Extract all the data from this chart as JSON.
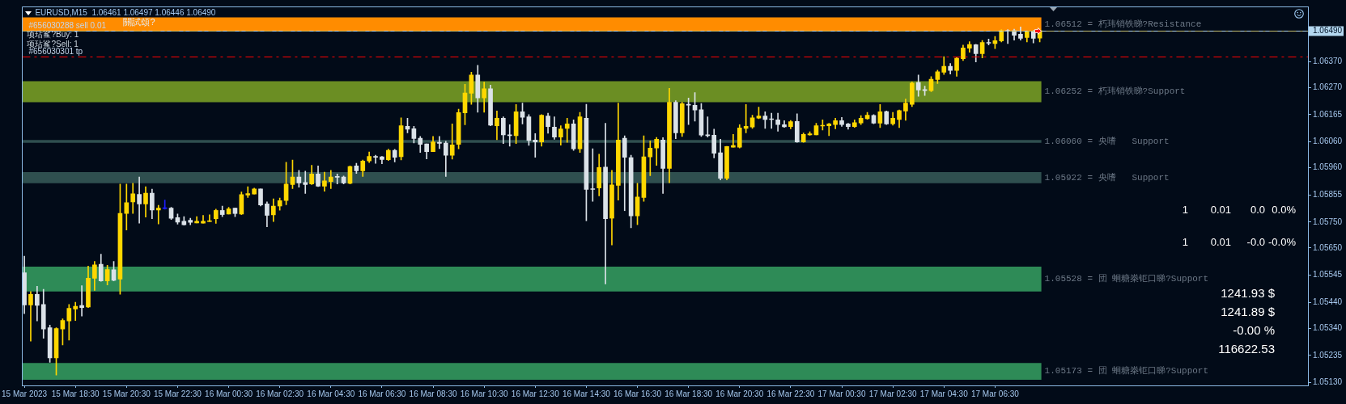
{
  "chart_data": {
    "type": "candlestick",
    "title": "EURUSD,M15  1.06461 1.06497 1.06446 1.06490",
    "x": [
      "2023-03-15T16:30",
      "2023-03-15T16:45",
      "2023-03-15T17:00",
      "2023-03-15T17:15",
      "2023-03-15T17:30",
      "2023-03-15T17:45",
      "2023-03-15T18:00",
      "2023-03-15T18:15",
      "2023-03-15T18:30",
      "2023-03-15T18:45",
      "2023-03-15T19:00",
      "2023-03-15T19:15",
      "2023-03-15T19:30",
      "2023-03-15T19:45",
      "2023-03-15T20:00",
      "2023-03-15T20:15",
      "2023-03-15T20:30",
      "2023-03-15T20:45",
      "2023-03-15T21:00",
      "2023-03-15T21:15",
      "2023-03-15T21:30",
      "2023-03-15T21:45",
      "2023-03-15T22:00",
      "2023-03-15T22:15",
      "2023-03-15T22:30",
      "2023-03-15T22:45",
      "2023-03-15T23:00",
      "2023-03-15T23:15",
      "2023-03-15T23:30",
      "2023-03-15T23:45",
      "2023-03-16T00:00",
      "2023-03-16T00:15",
      "2023-03-16T00:30",
      "2023-03-16T00:45",
      "2023-03-16T01:00",
      "2023-03-16T01:15",
      "2023-03-16T01:30",
      "2023-03-16T01:45",
      "2023-03-16T02:00",
      "2023-03-16T02:15",
      "2023-03-16T02:30",
      "2023-03-16T02:45",
      "2023-03-16T03:00",
      "2023-03-16T03:15",
      "2023-03-16T03:30",
      "2023-03-16T03:45",
      "2023-03-16T04:00",
      "2023-03-16T04:15",
      "2023-03-16T04:30",
      "2023-03-16T04:45",
      "2023-03-16T05:00",
      "2023-03-16T05:15",
      "2023-03-16T05:30",
      "2023-03-16T05:45",
      "2023-03-16T06:00",
      "2023-03-16T06:15",
      "2023-03-16T06:30",
      "2023-03-16T06:45",
      "2023-03-16T07:00",
      "2023-03-16T07:15",
      "2023-03-16T07:30",
      "2023-03-16T07:45",
      "2023-03-16T08:00",
      "2023-03-16T08:15",
      "2023-03-16T08:30",
      "2023-03-16T08:45",
      "2023-03-16T09:00",
      "2023-03-16T09:15",
      "2023-03-16T09:30",
      "2023-03-16T09:45",
      "2023-03-16T10:00",
      "2023-03-16T10:15",
      "2023-03-16T10:30",
      "2023-03-16T10:45",
      "2023-03-16T11:00",
      "2023-03-16T11:15",
      "2023-03-16T11:30",
      "2023-03-16T11:45",
      "2023-03-16T12:00",
      "2023-03-16T12:15",
      "2023-03-16T12:30",
      "2023-03-16T12:45",
      "2023-03-16T13:00",
      "2023-03-16T13:15",
      "2023-03-16T13:30",
      "2023-03-16T13:45",
      "2023-03-16T14:00",
      "2023-03-16T14:15",
      "2023-03-16T14:30",
      "2023-03-16T14:45",
      "2023-03-16T15:00",
      "2023-03-16T15:15",
      "2023-03-16T15:30",
      "2023-03-16T15:45",
      "2023-03-16T16:00",
      "2023-03-16T16:15",
      "2023-03-16T16:30",
      "2023-03-16T16:45",
      "2023-03-16T17:00",
      "2023-03-16T17:15",
      "2023-03-16T17:30",
      "2023-03-16T17:45",
      "2023-03-16T18:00",
      "2023-03-16T18:15",
      "2023-03-16T18:30",
      "2023-03-16T18:45",
      "2023-03-16T19:00",
      "2023-03-16T19:15",
      "2023-03-16T19:30",
      "2023-03-16T19:45",
      "2023-03-16T20:00",
      "2023-03-16T20:15",
      "2023-03-16T20:30",
      "2023-03-16T20:45",
      "2023-03-16T21:00",
      "2023-03-16T21:15",
      "2023-03-16T21:30",
      "2023-03-16T21:45",
      "2023-03-16T22:00",
      "2023-03-16T22:15",
      "2023-03-16T22:30",
      "2023-03-16T22:45",
      "2023-03-16T23:00",
      "2023-03-16T23:15",
      "2023-03-16T23:30",
      "2023-03-16T23:45",
      "2023-03-17T00:00",
      "2023-03-17T00:15",
      "2023-03-17T00:30",
      "2023-03-17T00:45",
      "2023-03-17T01:00",
      "2023-03-17T01:15",
      "2023-03-17T01:30",
      "2023-03-17T01:45",
      "2023-03-17T02:00",
      "2023-03-17T02:15",
      "2023-03-17T02:30",
      "2023-03-17T02:45",
      "2023-03-17T03:00",
      "2023-03-17T03:15",
      "2023-03-17T03:30",
      "2023-03-17T03:45",
      "2023-03-17T04:00",
      "2023-03-17T04:15",
      "2023-03-17T04:30",
      "2023-03-17T04:45",
      "2023-03-17T05:00",
      "2023-03-17T05:15",
      "2023-03-17T05:30",
      "2023-03-17T05:45",
      "2023-03-17T06:00",
      "2023-03-17T06:15",
      "2023-03-17T06:30",
      "2023-03-17T06:45",
      "2023-03-17T07:00",
      "2023-03-17T07:15",
      "2023-03-17T07:30",
      "2023-03-17T07:45",
      "2023-03-17T08:00",
      "2023-03-17T08:15"
    ],
    "ohlc": [
      [
        1.05554,
        1.05618,
        1.05396,
        1.0543
      ],
      [
        1.0543,
        1.05482,
        1.0529,
        1.05471
      ],
      [
        1.05471,
        1.05502,
        1.05368,
        1.05428
      ],
      [
        1.05432,
        1.0549,
        1.05301,
        1.05337
      ],
      [
        1.05342,
        1.05352,
        1.05208,
        1.05225
      ],
      [
        1.05225,
        1.05342,
        1.05159,
        1.05339
      ],
      [
        1.05337,
        1.05376,
        1.05275,
        1.0537
      ],
      [
        1.05368,
        1.05432,
        1.05294,
        1.05417
      ],
      [
        1.05414,
        1.0544,
        1.0537,
        1.05425
      ],
      [
        1.05428,
        1.05504,
        1.05387,
        1.0542
      ],
      [
        1.05422,
        1.0558,
        1.0542,
        1.05533
      ],
      [
        1.05533,
        1.05598,
        1.05486,
        1.05585
      ],
      [
        1.05587,
        1.05626,
        1.05521,
        1.05523
      ],
      [
        1.05523,
        1.05583,
        1.05507,
        1.05567
      ],
      [
        1.05566,
        1.05598,
        1.05523,
        1.05525
      ],
      [
        1.0553,
        1.05897,
        1.05471,
        1.05784
      ],
      [
        1.05783,
        1.05897,
        1.05719,
        1.05825
      ],
      [
        1.05828,
        1.059,
        1.05783,
        1.05859
      ],
      [
        1.05857,
        1.05924,
        1.05746,
        1.0582
      ],
      [
        1.0582,
        1.05887,
        1.05769,
        1.05862
      ],
      [
        1.05862,
        1.05877,
        1.05763,
        1.05797
      ],
      [
        1.05797,
        1.05815,
        1.05743,
        1.05804
      ],
      [
        1.05802,
        1.05835,
        1.058,
        1.05802
      ],
      [
        1.05804,
        1.05807,
        1.0576,
        1.05765
      ],
      [
        1.05767,
        1.05781,
        1.05742,
        1.0575
      ],
      [
        1.05753,
        1.05771,
        1.05738,
        1.0574
      ],
      [
        1.05757,
        1.05765,
        1.0574,
        1.05749
      ],
      [
        1.05747,
        1.05771,
        1.05747,
        1.05753
      ],
      [
        1.05746,
        1.05776,
        1.05746,
        1.05753
      ],
      [
        1.05752,
        1.05778,
        1.05752,
        1.05755
      ],
      [
        1.05763,
        1.058,
        1.05745,
        1.05795
      ],
      [
        1.05795,
        1.05812,
        1.05771,
        1.05779
      ],
      [
        1.05781,
        1.05807,
        1.05781,
        1.05801
      ],
      [
        1.05804,
        1.05804,
        1.05771,
        1.05783
      ],
      [
        1.05781,
        1.05866,
        1.05779,
        1.05856
      ],
      [
        1.05854,
        1.05887,
        1.05845,
        1.0586
      ],
      [
        1.05858,
        1.05881,
        1.05858,
        1.05878
      ],
      [
        1.05878,
        1.05878,
        1.05812,
        1.05816
      ],
      [
        1.0582,
        1.05828,
        1.05732,
        1.05776
      ],
      [
        1.05778,
        1.0584,
        1.05752,
        1.05812
      ],
      [
        1.05812,
        1.05843,
        1.05796,
        1.05833
      ],
      [
        1.05833,
        1.05981,
        1.05817,
        1.05897
      ],
      [
        1.05895,
        1.0599,
        1.05879,
        1.05924
      ],
      [
        1.05924,
        1.0595,
        1.05885,
        1.05901
      ],
      [
        1.05903,
        1.05947,
        1.05861,
        1.05895
      ],
      [
        1.05897,
        1.05969,
        1.05895,
        1.05936
      ],
      [
        1.05936,
        1.05967,
        1.05887,
        1.05889
      ],
      [
        1.05889,
        1.05943,
        1.05869,
        1.05909
      ],
      [
        1.05907,
        1.0595,
        1.05879,
        1.05924
      ],
      [
        1.05925,
        1.05936,
        1.05897,
        1.05923
      ],
      [
        1.05924,
        1.05928,
        1.05897,
        1.05901
      ],
      [
        1.059,
        1.05967,
        1.05897,
        1.05965
      ],
      [
        1.05967,
        1.05977,
        1.05938,
        1.05948
      ],
      [
        1.05948,
        1.0599,
        1.05926,
        1.05986
      ],
      [
        1.05986,
        1.06021,
        1.0598,
        1.06004
      ],
      [
        1.06004,
        1.06008,
        1.05977,
        1.06
      ],
      [
        1.06002,
        1.06004,
        1.05975,
        1.05992
      ],
      [
        1.05991,
        1.06032,
        1.05988,
        1.06027
      ],
      [
        1.06027,
        1.06031,
        1.05982,
        1.06
      ],
      [
        1.06003,
        1.06153,
        1.0599,
        1.06122
      ],
      [
        1.0612,
        1.06151,
        1.06095,
        1.06109
      ],
      [
        1.06111,
        1.0612,
        1.06056,
        1.06073
      ],
      [
        1.06074,
        1.06081,
        1.06019,
        1.0605
      ],
      [
        1.06052,
        1.06052,
        1.05994,
        1.06022
      ],
      [
        1.06022,
        1.06081,
        1.06022,
        1.0606
      ],
      [
        1.06058,
        1.06081,
        1.06034,
        1.06054
      ],
      [
        1.06055,
        1.06062,
        1.05926,
        1.06008
      ],
      [
        1.06008,
        1.06129,
        1.05993,
        1.06048
      ],
      [
        1.0605,
        1.06186,
        1.06033,
        1.06173
      ],
      [
        1.06172,
        1.06282,
        1.06126,
        1.06249
      ],
      [
        1.06248,
        1.06329,
        1.06205,
        1.06318
      ],
      [
        1.06318,
        1.06356,
        1.06174,
        1.0623
      ],
      [
        1.0623,
        1.06291,
        1.06174,
        1.06265
      ],
      [
        1.06265,
        1.06279,
        1.06122,
        1.06124
      ],
      [
        1.06122,
        1.06179,
        1.06068,
        1.06151
      ],
      [
        1.06151,
        1.06157,
        1.06053,
        1.06087
      ],
      [
        1.06087,
        1.06126,
        1.06043,
        1.06084
      ],
      [
        1.06084,
        1.06204,
        1.06053,
        1.06176
      ],
      [
        1.06176,
        1.0621,
        1.06129,
        1.06155
      ],
      [
        1.06157,
        1.06165,
        1.06046,
        1.06065
      ],
      [
        1.06067,
        1.06092,
        1.06,
        1.0606
      ],
      [
        1.0606,
        1.06165,
        1.06043,
        1.06163
      ],
      [
        1.0616,
        1.06171,
        1.06093,
        1.06119
      ],
      [
        1.06117,
        1.06157,
        1.0607,
        1.06078
      ],
      [
        1.06078,
        1.06122,
        1.06047,
        1.0611
      ],
      [
        1.06112,
        1.06151,
        1.06058,
        1.06129
      ],
      [
        1.06129,
        1.06145,
        1.06027,
        1.06033
      ],
      [
        1.06033,
        1.06174,
        1.06019,
        1.06157
      ],
      [
        1.06151,
        1.06205,
        1.05755,
        1.05876
      ],
      [
        1.05879,
        1.06033,
        1.0583,
        1.05876
      ],
      [
        1.05882,
        1.06012,
        1.05851,
        1.05961
      ],
      [
        1.05962,
        1.06132,
        1.05511,
        1.05763
      ],
      [
        1.05765,
        1.0595,
        1.05662,
        1.05894
      ],
      [
        1.05892,
        1.0621,
        1.05835,
        1.06067
      ],
      [
        1.06074,
        1.06083,
        1.05794,
        1.06
      ],
      [
        1.05999,
        1.06008,
        1.05728,
        1.05774
      ],
      [
        1.05774,
        1.059,
        1.0574,
        1.05847
      ],
      [
        1.05845,
        1.06083,
        1.0583,
        1.06002
      ],
      [
        1.06002,
        1.06064,
        1.05929,
        1.06036
      ],
      [
        1.06036,
        1.06077,
        1.05969,
        1.0607
      ],
      [
        1.06067,
        1.06076,
        1.05861,
        1.05957
      ],
      [
        1.05957,
        1.06267,
        1.05902,
        1.06213
      ],
      [
        1.06213,
        1.06219,
        1.06072,
        1.06095
      ],
      [
        1.06095,
        1.06213,
        1.06081,
        1.06207
      ],
      [
        1.06205,
        1.06229,
        1.06127,
        1.06202
      ],
      [
        1.06201,
        1.0625,
        1.0614,
        1.06183
      ],
      [
        1.06184,
        1.06208,
        1.06081,
        1.06086
      ],
      [
        1.06087,
        1.06157,
        1.06078,
        1.06084
      ],
      [
        1.06086,
        1.06109,
        1.05998,
        1.06016
      ],
      [
        1.06018,
        1.0607,
        1.05913,
        1.05919
      ],
      [
        1.05919,
        1.06043,
        1.05913,
        1.06042
      ],
      [
        1.06039,
        1.06089,
        1.06039,
        1.06046
      ],
      [
        1.06039,
        1.06126,
        1.06036,
        1.06114
      ],
      [
        1.06112,
        1.06204,
        1.06095,
        1.0612
      ],
      [
        1.06117,
        1.06163,
        1.06112,
        1.06153
      ],
      [
        1.06152,
        1.06194,
        1.06149,
        1.0616
      ],
      [
        1.0616,
        1.06176,
        1.06112,
        1.06146
      ],
      [
        1.06148,
        1.06171,
        1.06112,
        1.06146
      ],
      [
        1.06145,
        1.06171,
        1.06101,
        1.06127
      ],
      [
        1.06126,
        1.06142,
        1.06116,
        1.06118
      ],
      [
        1.06119,
        1.06143,
        1.0611,
        1.06138
      ],
      [
        1.06139,
        1.06168,
        1.06058,
        1.0606
      ],
      [
        1.0606,
        1.06094,
        1.06058,
        1.06089
      ],
      [
        1.06087,
        1.06099,
        1.06085,
        1.06091
      ],
      [
        1.06087,
        1.06132,
        1.06087,
        1.06122
      ],
      [
        1.06121,
        1.06145,
        1.06106,
        1.06124
      ],
      [
        1.06122,
        1.06132,
        1.06084,
        1.06129
      ],
      [
        1.06127,
        1.06151,
        1.0611,
        1.06142
      ],
      [
        1.06142,
        1.06154,
        1.0612,
        1.06127
      ],
      [
        1.06129,
        1.06132,
        1.06109,
        1.06119
      ],
      [
        1.06119,
        1.06145,
        1.06116,
        1.06134
      ],
      [
        1.06133,
        1.06161,
        1.06127,
        1.06151
      ],
      [
        1.06149,
        1.06174,
        1.06147,
        1.06163
      ],
      [
        1.06162,
        1.06165,
        1.0613,
        1.06132
      ],
      [
        1.06132,
        1.06204,
        1.06115,
        1.06176
      ],
      [
        1.06177,
        1.06179,
        1.06127,
        1.06129
      ],
      [
        1.0613,
        1.06174,
        1.06124,
        1.06151
      ],
      [
        1.06146,
        1.06183,
        1.06115,
        1.06181
      ],
      [
        1.06179,
        1.06225,
        1.06143,
        1.0621
      ],
      [
        1.06205,
        1.06292,
        1.06196,
        1.06287
      ],
      [
        1.06289,
        1.06318,
        1.06236,
        1.0626
      ],
      [
        1.06262,
        1.06275,
        1.06239,
        1.06258
      ],
      [
        1.06258,
        1.06312,
        1.06254,
        1.06302
      ],
      [
        1.06301,
        1.06337,
        1.06285,
        1.06331
      ],
      [
        1.06329,
        1.06389,
        1.0632,
        1.06352
      ],
      [
        1.06352,
        1.06363,
        1.06322,
        1.06336
      ],
      [
        1.06336,
        1.06385,
        1.06313,
        1.06383
      ],
      [
        1.06381,
        1.06434,
        1.06374,
        1.06423
      ],
      [
        1.06422,
        1.06447,
        1.06406,
        1.06436
      ],
      [
        1.06435,
        1.06437,
        1.06369,
        1.06401
      ],
      [
        1.06401,
        1.06452,
        1.06384,
        1.06444
      ],
      [
        1.06444,
        1.06457,
        1.06434,
        1.06441
      ],
      [
        1.0644,
        1.06467,
        1.0642,
        1.06451
      ],
      [
        1.0645,
        1.06494,
        1.06446,
        1.0649
      ],
      [
        1.0649,
        1.06494,
        1.0644,
        1.06487
      ],
      [
        1.0649,
        1.06495,
        1.06453,
        1.06472
      ],
      [
        1.06476,
        1.06504,
        1.06453,
        1.0646
      ],
      [
        1.06463,
        1.06489,
        1.06446,
        1.06486
      ],
      [
        1.06486,
        1.06491,
        1.06442,
        1.0646
      ],
      [
        1.06461,
        1.06497,
        1.06446,
        1.0649
      ]
    ],
    "colors": [
      "#dbe2e8",
      "#ffd700",
      "#dbe2e8",
      "#dbe2e8",
      "#dbe2e8",
      "#ffd700",
      "#ffd700",
      "#ffd700",
      "#ffd700",
      "#dbe2e8",
      "#ffd700",
      "#ffd700",
      "#dbe2e8",
      "#ffd700",
      "#dbe2e8",
      "#ffd700",
      "#ffd700",
      "#ffd700",
      "#dbe2e8",
      "#ffd700",
      "#dbe2e8",
      "#ffd700",
      "#1e1eff",
      "#dbe2e8",
      "#dbe2e8",
      "#dbe2e8",
      "#dbe2e8",
      "#ffd700",
      "#ffd700",
      "#ffd700",
      "#ffd700",
      "#dbe2e8",
      "#ffd700",
      "#dbe2e8",
      "#ffd700",
      "#ffd700",
      "#ffd700",
      "#dbe2e8",
      "#dbe2e8",
      "#ffd700",
      "#ffd700",
      "#ffd700",
      "#ffd700",
      "#dbe2e8",
      "#dbe2e8",
      "#ffd700",
      "#dbe2e8",
      "#ffd700",
      "#ffd700",
      "#dbe2e8",
      "#dbe2e8",
      "#ffd700",
      "#dbe2e8",
      "#ffd700",
      "#ffd700",
      "#dbe2e8",
      "#dbe2e8",
      "#ffd700",
      "#dbe2e8",
      "#ffd700",
      "#dbe2e8",
      "#dbe2e8",
      "#dbe2e8",
      "#dbe2e8",
      "#ffd700",
      "#dbe2e8",
      "#dbe2e8",
      "#ffd700",
      "#ffd700",
      "#ffd700",
      "#ffd700",
      "#dbe2e8",
      "#ffd700",
      "#dbe2e8",
      "#ffd700",
      "#dbe2e8",
      "#dbe2e8",
      "#ffd700",
      "#dbe2e8",
      "#dbe2e8",
      "#dbe2e8",
      "#ffd700",
      "#dbe2e8",
      "#dbe2e8",
      "#ffd700",
      "#ffd700",
      "#dbe2e8",
      "#ffd700",
      "#dbe2e8",
      "#dbe2e8",
      "#ffd700",
      "#dbe2e8",
      "#ffd700",
      "#ffd700",
      "#dbe2e8",
      "#dbe2e8",
      "#ffd700",
      "#ffd700",
      "#ffd700",
      "#ffd700",
      "#dbe2e8",
      "#ffd700",
      "#dbe2e8",
      "#ffd700",
      "#dbe2e8",
      "#dbe2e8",
      "#dbe2e8",
      "#dbe2e8",
      "#dbe2e8",
      "#dbe2e8",
      "#ffd700",
      "#ffd700",
      "#ffd700",
      "#ffd700",
      "#ffd700",
      "#ffd700",
      "#dbe2e8",
      "#dbe2e8",
      "#dbe2e8",
      "#dbe2e8",
      "#ffd700",
      "#dbe2e8",
      "#ffd700",
      "#ffd700",
      "#ffd700",
      "#ffd700",
      "#ffd700",
      "#ffd700",
      "#dbe2e8",
      "#dbe2e8",
      "#ffd700",
      "#ffd700",
      "#ffd700",
      "#dbe2e8",
      "#ffd700",
      "#dbe2e8",
      "#ffd700",
      "#ffd700",
      "#ffd700",
      "#ffd700",
      "#dbe2e8",
      "#dbe2e8",
      "#ffd700",
      "#ffd700",
      "#ffd700",
      "#dbe2e8",
      "#ffd700",
      "#ffd700",
      "#ffd700",
      "#dbe2e8",
      "#ffd700",
      "#dbe2e8",
      "#ffd700",
      "#ffd700",
      "#dbe2e8",
      "#dbe2e8",
      "#dbe2e8",
      "#ffd700",
      "#dbe2e8",
      "#ffd700"
    ],
    "xlim": [
      "2023-03-15T16:25",
      "2023-03-17T18:45"
    ],
    "xticks": [
      {
        "value": "2023-03-15T16:30",
        "label": "15 Mar 2023"
      },
      {
        "value": "2023-03-15T18:30",
        "label": "15 Mar 18:30"
      },
      {
        "value": "2023-03-15T20:30",
        "label": "15 Mar 20:30"
      },
      {
        "value": "2023-03-15T22:30",
        "label": "15 Mar 22:30"
      },
      {
        "value": "2023-03-16T00:30",
        "label": "16 Mar 00:30"
      },
      {
        "value": "2023-03-16T02:30",
        "label": "16 Mar 02:30"
      },
      {
        "value": "2023-03-16T04:30",
        "label": "16 Mar 04:30"
      },
      {
        "value": "2023-03-16T06:30",
        "label": "16 Mar 06:30"
      },
      {
        "value": "2023-03-16T08:30",
        "label": "16 Mar 08:30"
      },
      {
        "value": "2023-03-16T10:30",
        "label": "16 Mar 10:30"
      },
      {
        "value": "2023-03-16T12:30",
        "label": "16 Mar 12:30"
      },
      {
        "value": "2023-03-16T14:30",
        "label": "16 Mar 14:30"
      },
      {
        "value": "2023-03-16T16:30",
        "label": "16 Mar 16:30"
      },
      {
        "value": "2023-03-16T18:30",
        "label": "16 Mar 18:30"
      },
      {
        "value": "2023-03-16T20:30",
        "label": "16 Mar 20:30"
      },
      {
        "value": "2023-03-16T22:30",
        "label": "16 Mar 22:30"
      },
      {
        "value": "2023-03-17T00:30",
        "label": "17 Mar 00:30"
      },
      {
        "value": "2023-03-17T02:30",
        "label": "17 Mar 02:30"
      },
      {
        "value": "2023-03-17T04:30",
        "label": "17 Mar 04:30"
      },
      {
        "value": "2023-03-17T06:30",
        "label": "17 Mar 06:30"
      }
    ],
    "ylim": [
      1.05119,
      1.06583
    ],
    "yticks": [
      {
        "value": 1.0513,
        "label": "1.05130"
      },
      1.05235,
      {
        "value": 1.0534,
        "label": "1.05340"
      },
      {
        "value": 1.0544,
        "label": "1.05440"
      },
      1.05545,
      {
        "value": 1.0565,
        "label": "1.05650"
      },
      {
        "value": 1.0575,
        "label": "1.05750"
      },
      1.05855,
      {
        "value": 1.0596,
        "label": "1.05960"
      },
      {
        "value": 1.0606,
        "label": "1.06060"
      },
      1.06165,
      {
        "value": 1.0627,
        "label": "1.06270"
      },
      {
        "value": 1.0637,
        "label": "1.06370"
      }
    ],
    "bands": [
      {
        "axis": "y",
        "from": 1.06486,
        "to": 1.06541,
        "color": "#ff8c00",
        "label": "1.06512 = 朽玮销铁睇?Resistance"
      },
      {
        "axis": "y",
        "from": 1.06213,
        "to": 1.06294,
        "color": "#6b8e23",
        "label": "1.06252 = 朽玮销铁睇?Support"
      },
      {
        "axis": "y",
        "from": 1.06056,
        "to": 1.06067,
        "color": "#2f4f4f",
        "label": "1.06060 = 央嗜   Support"
      },
      {
        "axis": "y",
        "from": 1.059,
        "to": 1.05943,
        "color": "#2f4f4f",
        "label": "1.05922 = 央嗜   Support"
      },
      {
        "axis": "y",
        "from": 1.05482,
        "to": 1.05578,
        "color": "#2e8b57",
        "label": "1.05528 = 団 蛔糖桊钜口睇?Support"
      },
      {
        "axis": "y",
        "from": 1.05141,
        "to": 1.05206,
        "color": "#2e8b57",
        "label": "1.05173 = 団 蛔糖桊钜口睇?Support"
      }
    ],
    "ref_lines": [
      {
        "axis": "y",
        "value": 1.0649,
        "label": "1.06490",
        "color": "#b4d8f0",
        "line_style": "solid"
      },
      {
        "axis": "y",
        "value": 1.0649,
        "label": "#656030288 sell 0.01",
        "color": "#c8c070",
        "line_style": "dashed"
      },
      {
        "axis": "y",
        "value": 1.06389,
        "label": "#656030301 tp",
        "color": "#ff0000",
        "line_style": "dashed"
      }
    ],
    "annotations": [
      "關試頌?",
      "项玷鲨?Buy: 1",
      "项玷鲨?Sell: 1",
      "1",
      "0.01",
      "0.0",
      "0.0%",
      "1",
      "0.01",
      "-0.0",
      "-0.0%",
      "1241.93 $",
      "1241.89 $",
      "-0.00 %",
      "116622.53"
    ]
  }
}
